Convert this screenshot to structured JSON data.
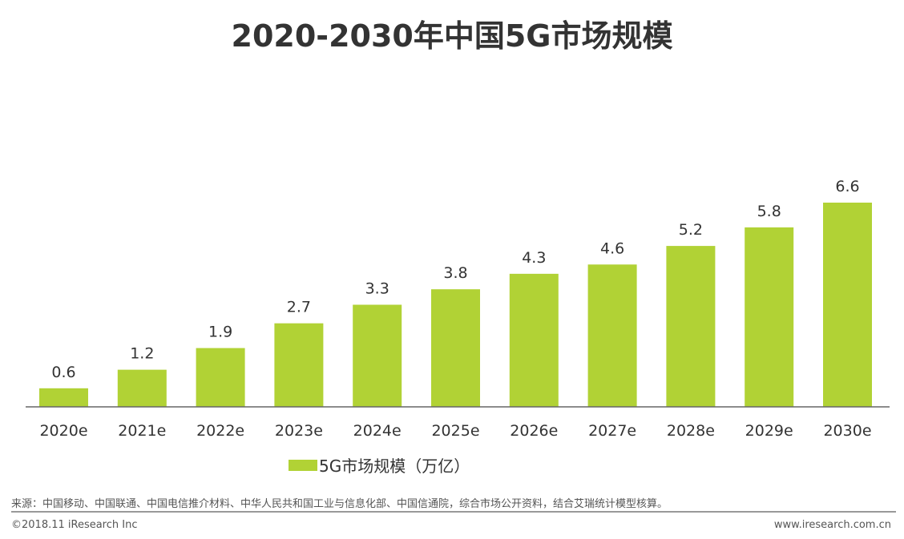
{
  "chart_data": {
    "type": "bar",
    "title": "2020-2030年中国5G市场规模",
    "categories": [
      "2020e",
      "2021e",
      "2022e",
      "2023e",
      "2024e",
      "2025e",
      "2026e",
      "2027e",
      "2028e",
      "2029e",
      "2030e"
    ],
    "series": [
      {
        "name": "5G市场规模（万亿）",
        "values": [
          0.6,
          1.2,
          1.9,
          2.7,
          3.3,
          3.8,
          4.3,
          4.6,
          5.2,
          5.8,
          6.6
        ],
        "color": "#b1d235"
      }
    ],
    "xlabel": "",
    "ylabel": "",
    "ylim": [
      0,
      6.6
    ],
    "grid": false,
    "legend_position": "bottom",
    "data_labels": true
  },
  "footer": {
    "source": "来源：中国移动、中国联通、中国电信推介材料、中华人民共和国工业与信息化部、中国信通院，综合市场公开资料，结合艾瑞统计模型核算。",
    "copyright": "©2018.11 iResearch Inc",
    "url": "www.iresearch.com.cn"
  }
}
